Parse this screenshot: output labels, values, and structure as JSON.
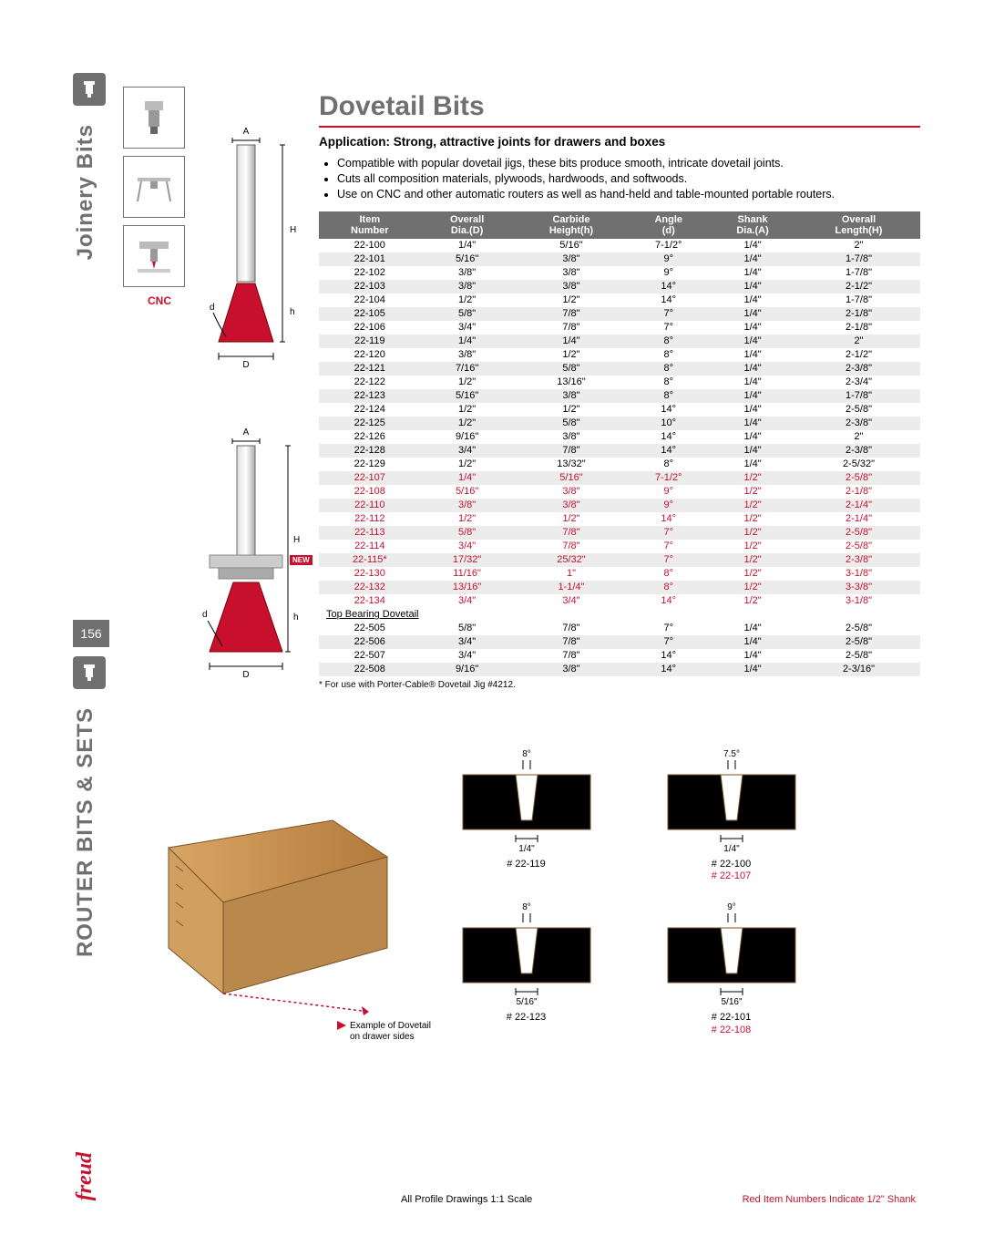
{
  "sidebar": {
    "section_top": "Joinery Bits",
    "section_bottom": "ROUTER BITS & SETS",
    "page_number": "156",
    "brand": "freud",
    "cnc_label": "CNC"
  },
  "header": {
    "title": "Dovetail Bits",
    "application": "Application: Strong, attractive joints for drawers and boxes",
    "bullets": [
      "Compatible with popular dovetail jigs, these bits produce smooth, intricate dovetail joints.",
      "Cuts all composition materials, plywoods, hardwoods, and softwoods.",
      "Use on CNC and other automatic routers as well as hand-held and table-mounted portable routers."
    ]
  },
  "specs": {
    "columns": [
      "Item\nNumber",
      "Overall\nDia.(D)",
      "Carbide\nHeight(h)",
      "Angle\n(d)",
      "Shank\nDia.(A)",
      "Overall\nLength(H)"
    ],
    "rows": [
      {
        "item": "22-100",
        "D": "1/4\"",
        "h": "5/16\"",
        "d": "7-1/2°",
        "A": "1/4\"",
        "H": "2\"",
        "red": false,
        "new": false
      },
      {
        "item": "22-101",
        "D": "5/16\"",
        "h": "3/8\"",
        "d": "9°",
        "A": "1/4\"",
        "H": "1-7/8\"",
        "red": false,
        "new": false
      },
      {
        "item": "22-102",
        "D": "3/8\"",
        "h": "3/8\"",
        "d": "9°",
        "A": "1/4\"",
        "H": "1-7/8\"",
        "red": false,
        "new": false
      },
      {
        "item": "22-103",
        "D": "3/8\"",
        "h": "3/8\"",
        "d": "14°",
        "A": "1/4\"",
        "H": "2-1/2\"",
        "red": false,
        "new": false
      },
      {
        "item": "22-104",
        "D": "1/2\"",
        "h": "1/2\"",
        "d": "14°",
        "A": "1/4\"",
        "H": "1-7/8\"",
        "red": false,
        "new": false
      },
      {
        "item": "22-105",
        "D": "5/8\"",
        "h": "7/8\"",
        "d": "7°",
        "A": "1/4\"",
        "H": "2-1/8\"",
        "red": false,
        "new": false
      },
      {
        "item": "22-106",
        "D": "3/4\"",
        "h": "7/8\"",
        "d": "7°",
        "A": "1/4\"",
        "H": "2-1/8\"",
        "red": false,
        "new": false
      },
      {
        "item": "22-119",
        "D": "1/4\"",
        "h": "1/4\"",
        "d": "8°",
        "A": "1/4\"",
        "H": "2\"",
        "red": false,
        "new": false
      },
      {
        "item": "22-120",
        "D": "3/8\"",
        "h": "1/2\"",
        "d": "8°",
        "A": "1/4\"",
        "H": "2-1/2\"",
        "red": false,
        "new": false
      },
      {
        "item": "22-121",
        "D": "7/16\"",
        "h": "5/8\"",
        "d": "8°",
        "A": "1/4\"",
        "H": "2-3/8\"",
        "red": false,
        "new": false
      },
      {
        "item": "22-122",
        "D": "1/2\"",
        "h": "13/16\"",
        "d": "8°",
        "A": "1/4\"",
        "H": "2-3/4\"",
        "red": false,
        "new": false
      },
      {
        "item": "22-123",
        "D": "5/16\"",
        "h": "3/8\"",
        "d": "8°",
        "A": "1/4\"",
        "H": "1-7/8\"",
        "red": false,
        "new": false
      },
      {
        "item": "22-124",
        "D": "1/2\"",
        "h": "1/2\"",
        "d": "14°",
        "A": "1/4\"",
        "H": "2-5/8\"",
        "red": false,
        "new": false
      },
      {
        "item": "22-125",
        "D": "1/2\"",
        "h": "5/8\"",
        "d": "10°",
        "A": "1/4\"",
        "H": "2-3/8\"",
        "red": false,
        "new": false
      },
      {
        "item": "22-126",
        "D": "9/16\"",
        "h": "3/8\"",
        "d": "14°",
        "A": "1/4\"",
        "H": "2\"",
        "red": false,
        "new": false
      },
      {
        "item": "22-128",
        "D": "3/4\"",
        "h": "7/8\"",
        "d": "14°",
        "A": "1/4\"",
        "H": "2-3/8\"",
        "red": false,
        "new": false
      },
      {
        "item": "22-129",
        "D": "1/2\"",
        "h": "13/32\"",
        "d": "8°",
        "A": "1/4\"",
        "H": "2-5/32\"",
        "red": false,
        "new": false
      },
      {
        "item": "22-107",
        "D": "1/4\"",
        "h": "5/16\"",
        "d": "7-1/2°",
        "A": "1/2\"",
        "H": "2-5/8\"",
        "red": true,
        "new": false
      },
      {
        "item": "22-108",
        "D": "5/16\"",
        "h": "3/8\"",
        "d": "9°",
        "A": "1/2\"",
        "H": "2-1/8\"",
        "red": true,
        "new": false
      },
      {
        "item": "22-110",
        "D": "3/8\"",
        "h": "3/8\"",
        "d": "9°",
        "A": "1/2\"",
        "H": "2-1/4\"",
        "red": true,
        "new": false
      },
      {
        "item": "22-112",
        "D": "1/2\"",
        "h": "1/2\"",
        "d": "14°",
        "A": "1/2\"",
        "H": "2-1/4\"",
        "red": true,
        "new": false
      },
      {
        "item": "22-113",
        "D": "5/8\"",
        "h": "7/8\"",
        "d": "7°",
        "A": "1/2\"",
        "H": "2-5/8\"",
        "red": true,
        "new": false
      },
      {
        "item": "22-114",
        "D": "3/4\"",
        "h": "7/8\"",
        "d": "7°",
        "A": "1/2\"",
        "H": "2-5/8\"",
        "red": true,
        "new": false
      },
      {
        "item": "22-115*",
        "D": "17/32\"",
        "h": "25/32\"",
        "d": "7°",
        "A": "1/2\"",
        "H": "2-3/8\"",
        "red": true,
        "new": true
      },
      {
        "item": "22-130",
        "D": "11/16\"",
        "h": "1\"",
        "d": "8°",
        "A": "1/2\"",
        "H": "3-1/8\"",
        "red": true,
        "new": false
      },
      {
        "item": "22-132",
        "D": "13/16\"",
        "h": "1-1/4\"",
        "d": "8°",
        "A": "1/2\"",
        "H": "3-3/8\"",
        "red": true,
        "new": false
      },
      {
        "item": "22-134",
        "D": "3/4\"",
        "h": "3/4\"",
        "d": "14°",
        "A": "1/2\"",
        "H": "3-1/8\"",
        "red": true,
        "new": false
      }
    ],
    "section_label": "Top Bearing Dovetail",
    "rows2": [
      {
        "item": "22-505",
        "D": "5/8\"",
        "h": "7/8\"",
        "d": "7°",
        "A": "1/4\"",
        "H": "2-5/8\"",
        "red": false,
        "new": false
      },
      {
        "item": "22-506",
        "D": "3/4\"",
        "h": "7/8\"",
        "d": "7°",
        "A": "1/4\"",
        "H": "2-5/8\"",
        "red": false,
        "new": false
      },
      {
        "item": "22-507",
        "D": "3/4\"",
        "h": "7/8\"",
        "d": "14°",
        "A": "1/4\"",
        "H": "2-5/8\"",
        "red": false,
        "new": false
      },
      {
        "item": "22-508",
        "D": "9/16\"",
        "h": "3/8\"",
        "d": "14°",
        "A": "1/4\"",
        "H": "2-3/16\"",
        "red": false,
        "new": false
      }
    ],
    "footnote": "* For use with Porter-Cable® Dovetail Jig #4212.",
    "new_tag": "NEW"
  },
  "profiles": [
    {
      "angle": "8°",
      "dim": "1/4\"",
      "cap1": "# 22-119",
      "cap2": ""
    },
    {
      "angle": "7.5°",
      "dim": "1/4\"",
      "cap1": "# 22-100",
      "cap2": "# 22-107"
    },
    {
      "angle": "8°",
      "dim": "5/16\"",
      "cap1": "# 22-123",
      "cap2": ""
    },
    {
      "angle": "9°",
      "dim": "5/16\"",
      "cap1": "# 22-101",
      "cap2": "# 22-108"
    }
  ],
  "drawer_caption": "Example of Dovetail\non drawer sides",
  "footer": {
    "left": "All Profile Drawings 1:1 Scale",
    "right": "Red Item Numbers Indicate 1/2\" Shank"
  },
  "colors": {
    "freud_red": "#c8102e",
    "grey": "#707070",
    "wood_light": "#d9a565",
    "wood_dark": "#b37a3c",
    "alt_row": "#ececec"
  }
}
